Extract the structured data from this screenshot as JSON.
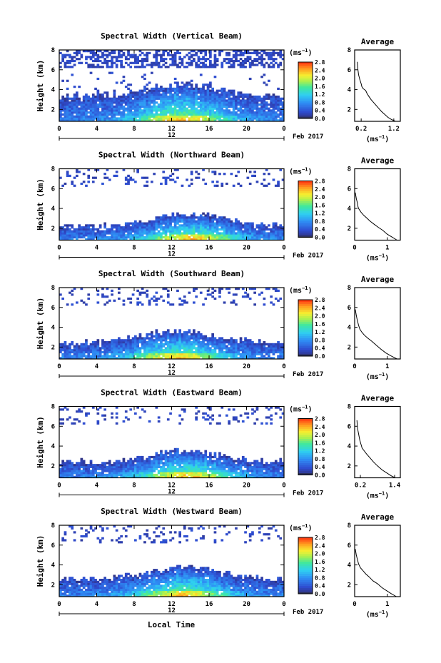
{
  "chart_data": [
    {
      "type": "heatmap",
      "title": "Spectral Width (Vertical Beam)",
      "ylabel": "Height (km)",
      "xticks": [
        "0",
        "4",
        "8",
        "12",
        "16",
        "20",
        "0"
      ],
      "date_label": "12",
      "month_label": "Feb 2017",
      "yticks": [
        "2",
        "4",
        "6",
        "8"
      ],
      "xlim": [
        0,
        24
      ],
      "ylim": [
        0.8,
        8.0
      ],
      "colorbar": {
        "unit": "(ms",
        "unit_exp": "−1",
        "unit_close": ")",
        "ticks": [
          "0.0",
          "0.4",
          "0.8",
          "1.2",
          "1.6",
          "2.0",
          "2.4",
          "2.8"
        ],
        "range": [
          0.0,
          2.8
        ]
      },
      "profile": {
        "title": "Average",
        "xlabel": "(ms",
        "xlabel_exp": "−1",
        "xlabel_close": ")",
        "xticks": [
          "0.2",
          "1.2"
        ],
        "xtick_values": [
          0.2,
          1.2
        ],
        "xlim": [
          0.0,
          1.4
        ],
        "ylim": [
          0.8,
          8.0
        ],
        "yticks": [
          "2",
          "4",
          "6",
          "8"
        ],
        "x": [
          0.08,
          0.1,
          0.12,
          0.16,
          0.2,
          0.22,
          0.26,
          0.34,
          0.38,
          0.44,
          0.5,
          0.58,
          0.66,
          0.74,
          0.82,
          0.92,
          1.02,
          1.12,
          1.25
        ],
        "y": [
          6.8,
          6.0,
          5.5,
          5.0,
          4.6,
          4.3,
          4.1,
          3.9,
          3.6,
          3.3,
          3.0,
          2.7,
          2.4,
          2.1,
          1.8,
          1.5,
          1.2,
          1.0,
          0.8
        ]
      },
      "seed": 11,
      "low_layer_top": 3.3,
      "peak_hour": 13.0
    },
    {
      "type": "heatmap",
      "title": "Spectral Width (Northward Beam)",
      "ylabel": "Height (km)",
      "xticks": [
        "0",
        "4",
        "8",
        "12",
        "16",
        "20",
        "0"
      ],
      "date_label": "12",
      "month_label": "Feb 2017",
      "yticks": [
        "2",
        "4",
        "6",
        "8"
      ],
      "xlim": [
        0,
        24
      ],
      "ylim": [
        0.8,
        8.0
      ],
      "colorbar": {
        "unit": "(ms",
        "unit_exp": "−1",
        "unit_close": ")",
        "ticks": [
          "0.0",
          "0.4",
          "0.8",
          "1.2",
          "1.6",
          "2.0",
          "2.4",
          "2.8"
        ],
        "range": [
          0.0,
          2.8
        ]
      },
      "profile": {
        "title": "Average",
        "xlabel": "(ms",
        "xlabel_exp": "−1",
        "xlabel_close": ")",
        "xticks": [
          "0",
          "1"
        ],
        "xtick_values": [
          0,
          1
        ],
        "xlim": [
          0.0,
          1.4
        ],
        "ylim": [
          0.8,
          8.0
        ],
        "yticks": [
          "2",
          "4",
          "6",
          "8"
        ],
        "x": [
          0.02,
          0.05,
          0.08,
          0.1,
          0.12,
          0.16,
          0.2,
          0.28,
          0.38,
          0.48,
          0.6,
          0.72,
          0.86,
          1.0,
          1.15,
          1.3
        ],
        "y": [
          5.6,
          5.0,
          4.6,
          4.2,
          4.0,
          3.8,
          3.6,
          3.3,
          3.0,
          2.7,
          2.4,
          2.1,
          1.8,
          1.4,
          1.1,
          0.8
        ]
      },
      "seed": 23,
      "low_layer_top": 2.2,
      "peak_hour": 14.0
    },
    {
      "type": "heatmap",
      "title": "Spectral Width (Southward Beam)",
      "ylabel": "Height (km)",
      "xticks": [
        "0",
        "4",
        "8",
        "12",
        "16",
        "20",
        "0"
      ],
      "date_label": "12",
      "month_label": "Feb 2017",
      "yticks": [
        "2",
        "4",
        "6",
        "8"
      ],
      "xlim": [
        0,
        24
      ],
      "ylim": [
        0.8,
        8.0
      ],
      "colorbar": {
        "unit": "(ms",
        "unit_exp": "−1",
        "unit_close": ")",
        "ticks": [
          "0.0",
          "0.4",
          "0.8",
          "1.2",
          "1.6",
          "2.0",
          "2.4",
          "2.8"
        ],
        "range": [
          0.0,
          2.8
        ]
      },
      "profile": {
        "title": "Average",
        "xlabel": "(ms",
        "xlabel_exp": "−1",
        "xlabel_close": ")",
        "xticks": [
          "0",
          "1"
        ],
        "xtick_values": [
          0,
          1
        ],
        "xlim": [
          0.0,
          1.4
        ],
        "ylim": [
          0.8,
          8.0
        ],
        "yticks": [
          "2",
          "4",
          "6",
          "8"
        ],
        "x": [
          0.02,
          0.05,
          0.08,
          0.12,
          0.16,
          0.22,
          0.3,
          0.4,
          0.52,
          0.66,
          0.8,
          0.96,
          1.12,
          1.3
        ],
        "y": [
          5.8,
          5.2,
          4.7,
          4.2,
          3.8,
          3.5,
          3.2,
          2.9,
          2.6,
          2.2,
          1.8,
          1.4,
          1.1,
          0.8
        ]
      },
      "seed": 37,
      "low_layer_top": 2.4,
      "peak_hour": 12.5
    },
    {
      "type": "heatmap",
      "title": "Spectral Width (Eastward Beam)",
      "ylabel": "Height (km)",
      "xticks": [
        "0",
        "4",
        "8",
        "12",
        "16",
        "20",
        "0"
      ],
      "date_label": "12",
      "month_label": "Feb 2017",
      "yticks": [
        "2",
        "4",
        "6",
        "8"
      ],
      "xlim": [
        0,
        24
      ],
      "ylim": [
        0.8,
        8.0
      ],
      "colorbar": {
        "unit": "(ms",
        "unit_exp": "−1",
        "unit_close": ")",
        "ticks": [
          "0.0",
          "0.4",
          "0.8",
          "1.2",
          "1.6",
          "2.0",
          "2.4",
          "2.8"
        ],
        "range": [
          0.0,
          2.8
        ]
      },
      "profile": {
        "title": "Average",
        "xlabel": "(ms",
        "xlabel_exp": "−1",
        "xlabel_close": ")",
        "xticks": [
          "0.2",
          "1.4"
        ],
        "xtick_values": [
          0.2,
          1.4
        ],
        "xlim": [
          0.0,
          1.6
        ],
        "ylim": [
          0.8,
          8.0
        ],
        "yticks": [
          "2",
          "4",
          "6",
          "8"
        ],
        "x": [
          0.08,
          0.1,
          0.14,
          0.18,
          0.22,
          0.26,
          0.34,
          0.42,
          0.54,
          0.66,
          0.8,
          0.96,
          1.12,
          1.28,
          1.42
        ],
        "y": [
          6.6,
          5.8,
          5.2,
          4.6,
          4.2,
          3.8,
          3.5,
          3.2,
          2.8,
          2.4,
          2.0,
          1.6,
          1.3,
          1.0,
          0.8
        ]
      },
      "seed": 53,
      "low_layer_top": 2.3,
      "peak_hour": 13.5
    },
    {
      "type": "heatmap",
      "title": "Spectral Width (Westward Beam)",
      "ylabel": "Height (km)",
      "xticks": [
        "0",
        "4",
        "8",
        "12",
        "16",
        "20",
        "0"
      ],
      "date_label": "12",
      "month_label": "Feb 2017",
      "yticks": [
        "2",
        "4",
        "6",
        "8"
      ],
      "xlim": [
        0,
        24
      ],
      "ylim": [
        0.8,
        8.0
      ],
      "colorbar": {
        "unit": "(ms",
        "unit_exp": "−1",
        "unit_close": ")",
        "ticks": [
          "0.0",
          "0.4",
          "0.8",
          "1.2",
          "1.6",
          "2.0",
          "2.4",
          "2.8"
        ],
        "range": [
          0.0,
          2.8
        ]
      },
      "profile": {
        "title": "Average",
        "xlabel": "(ms",
        "xlabel_exp": "−1",
        "xlabel_close": ")",
        "xticks": [
          "0",
          "1"
        ],
        "xtick_values": [
          0,
          1
        ],
        "xlim": [
          0.0,
          1.4
        ],
        "ylim": [
          0.8,
          8.0
        ],
        "yticks": [
          "2",
          "4",
          "6",
          "8"
        ],
        "x": [
          0.02,
          0.05,
          0.08,
          0.12,
          0.18,
          0.26,
          0.34,
          0.44,
          0.56,
          0.7,
          0.84,
          0.98,
          1.12,
          1.28
        ],
        "y": [
          5.6,
          5.0,
          4.6,
          4.1,
          3.7,
          3.4,
          3.1,
          2.8,
          2.4,
          2.1,
          1.7,
          1.4,
          1.1,
          0.8
        ]
      },
      "seed": 71,
      "low_layer_top": 2.5,
      "peak_hour": 13.0
    }
  ],
  "footer": {
    "xlabel": "Local Time"
  },
  "colors": {
    "background": "#ffffff",
    "axis": "#000000",
    "missing": "#ffffff",
    "lowest_bin": "#2b2f5a"
  }
}
